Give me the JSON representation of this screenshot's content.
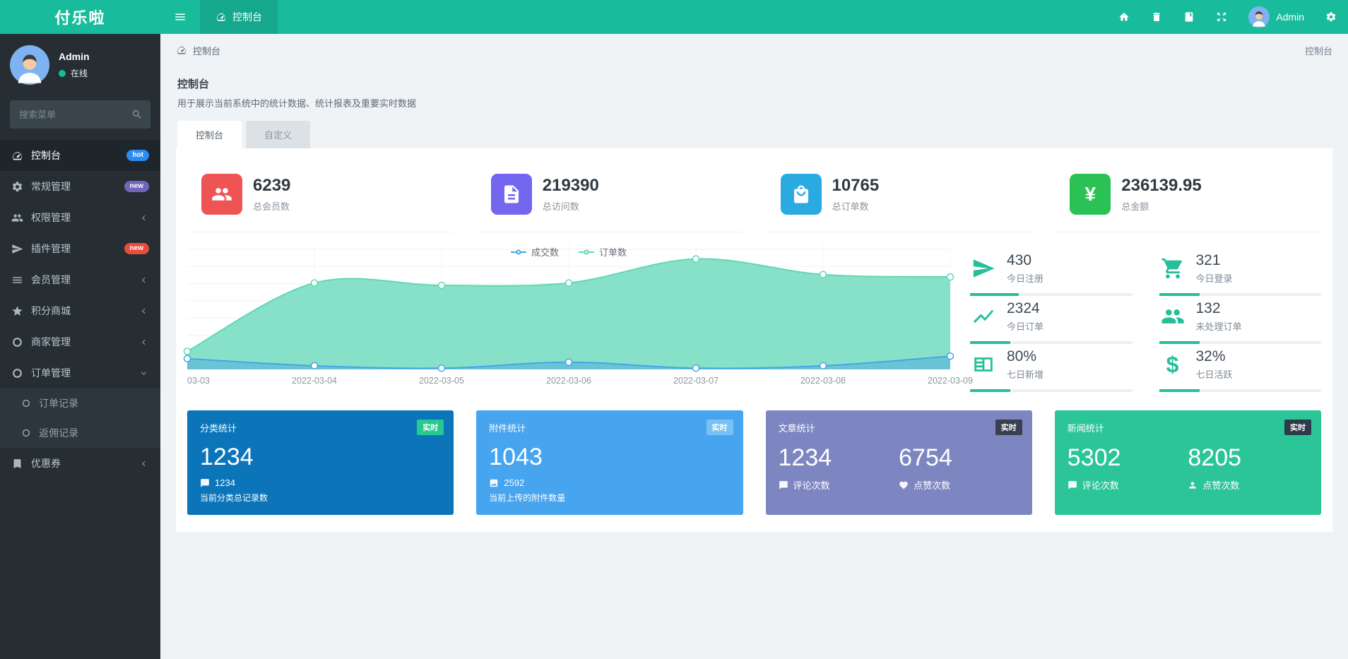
{
  "navbar": {
    "logo": "付乐啦",
    "nav_tab": "控制台",
    "user_name": "Admin"
  },
  "breadcrumb": {
    "current": "控制台",
    "right": "控制台"
  },
  "sidebar": {
    "user": {
      "name": "Admin",
      "status": "在线"
    },
    "search_placeholder": "搜索菜单",
    "menu": [
      {
        "label": "控制台",
        "icon": "gauge-icon",
        "badge": {
          "text": "hot",
          "color": "#2d8cf0"
        },
        "active": true
      },
      {
        "label": "常规管理",
        "icon": "gears-icon",
        "badge": {
          "text": "new",
          "color": "#7266ba"
        }
      },
      {
        "label": "权限管理",
        "icon": "users-icon",
        "chevron": "left"
      },
      {
        "label": "插件管理",
        "icon": "rocket-icon",
        "badge": {
          "text": "new",
          "color": "#e74c3c"
        }
      },
      {
        "label": "会员管理",
        "icon": "list-icon",
        "chevron": "left"
      },
      {
        "label": "积分商城",
        "icon": "star-icon",
        "chevron": "left"
      },
      {
        "label": "商家管理",
        "icon": "circle-icon",
        "chevron": "left"
      },
      {
        "label": "订单管理",
        "icon": "circle-icon",
        "chevron": "down",
        "expanded": true
      },
      {
        "label": "优惠券",
        "icon": "bookmark-icon",
        "chevron": "left"
      }
    ],
    "submenu": [
      {
        "label": "订单记录"
      },
      {
        "label": "返佣记录"
      }
    ]
  },
  "page": {
    "title": "控制台",
    "description": "用于展示当前系统中的统计数据、统计报表及重要实时数据",
    "tabs": [
      {
        "label": "控制台",
        "active": true
      },
      {
        "label": "自定义",
        "active": false
      }
    ]
  },
  "stats": [
    {
      "value": "6239",
      "label": "总会员数",
      "color": "#ef5455",
      "icon": "users-icon"
    },
    {
      "value": "219390",
      "label": "总访问数",
      "color": "#7367f0",
      "icon": "document-icon"
    },
    {
      "value": "10765",
      "label": "总订单数",
      "color": "#29abe2",
      "icon": "shopping-bag-icon"
    },
    {
      "value": "236139.95",
      "label": "总金额",
      "color": "#2bc155",
      "icon": "yen-icon",
      "glyph": "¥"
    }
  ],
  "chart_data": {
    "type": "area",
    "title": "",
    "xlabel": "",
    "ylabel": "",
    "x": [
      "03-03",
      "2022-03-04",
      "2022-03-05",
      "2022-03-06",
      "2022-03-07",
      "2022-03-08",
      "2022-03-09"
    ],
    "series": [
      {
        "name": "成交数",
        "color": "#45a5e6",
        "fill": "rgba(69,165,230,0.45)",
        "values": [
          9,
          3,
          1,
          6,
          1,
          3,
          11
        ]
      },
      {
        "name": "订单数",
        "color": "#5fd7b5",
        "fill": "#87e1c8",
        "values": [
          15,
          72,
          70,
          72,
          92,
          79,
          77
        ]
      }
    ],
    "ylim": [
      0,
      100
    ],
    "grid": true,
    "legend_position": "top-center",
    "y_axis_labels_visible": false
  },
  "ministats": [
    {
      "value": "430",
      "label": "今日注册",
      "icon": "rocket-icon",
      "bar": "30%"
    },
    {
      "value": "321",
      "label": "今日登录",
      "icon": "cart-icon",
      "bar": "25%"
    },
    {
      "value": "2324",
      "label": "今日订单",
      "icon": "chart-line-icon",
      "bar": "25%"
    },
    {
      "value": "132",
      "label": "未处理订单",
      "icon": "users-icon",
      "bar": "25%"
    },
    {
      "value": "80%",
      "label": "七日新增",
      "icon": "newspaper-icon",
      "bar": "25%"
    },
    {
      "value": "32%",
      "label": "七日活跃",
      "icon": "dollar-icon",
      "glyph": "$",
      "bar": "25%"
    }
  ],
  "cards": [
    {
      "title": "分类统计",
      "badge": "实时",
      "badge_bg": "#26c98f",
      "bg": "#0c75b9",
      "value": "1234",
      "sub_value": "1234",
      "sub_icon": "comment-icon",
      "label": "当前分类总记录数"
    },
    {
      "title": "附件统计",
      "badge": "实时",
      "badge_bg": "#79c1f5",
      "bg": "#47a4ef",
      "value": "1043",
      "sub_value": "2592",
      "sub_icon": "image-icon",
      "label": "当前上传的附件数量"
    },
    {
      "title": "文章统计",
      "badge": "实时",
      "badge_bg": "#3a4050",
      "bg": "#7d86c1",
      "cols": [
        {
          "value": "1234",
          "icon": "comment-icon",
          "label": "评论次数"
        },
        {
          "value": "6754",
          "icon": "heart-icon",
          "label": "点赞次数"
        }
      ]
    },
    {
      "title": "新闻统计",
      "badge": "实时",
      "badge_bg": "#2d3a4a",
      "bg": "#2bc598",
      "cols": [
        {
          "value": "5302",
          "icon": "comment-icon",
          "label": "评论次数"
        },
        {
          "value": "8205",
          "icon": "person-icon",
          "label": "点赞次数"
        }
      ]
    }
  ]
}
